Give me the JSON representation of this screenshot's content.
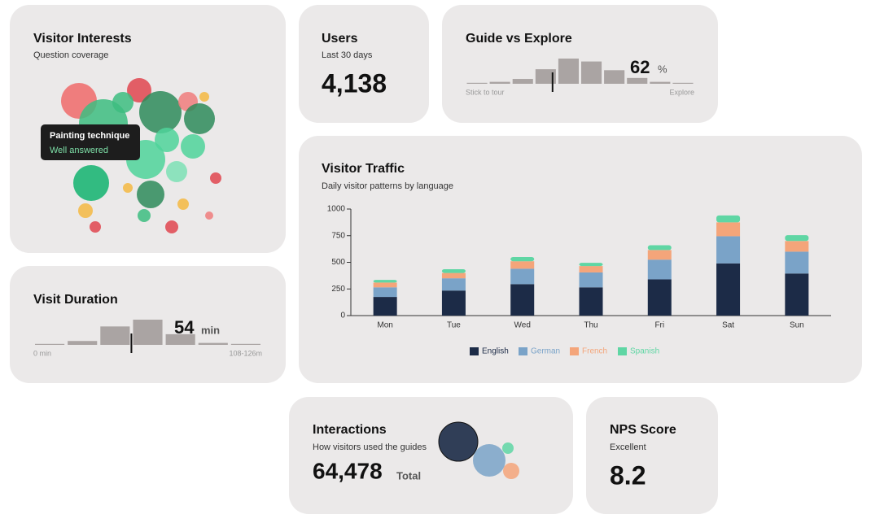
{
  "cards": {
    "interests": {
      "title": "Visitor Interests",
      "subtitle": "Question coverage",
      "bubbles": {
        "sizes": [
          22,
          30,
          15,
          13,
          26,
          12,
          6,
          19,
          15,
          15,
          24,
          22,
          13,
          6,
          17,
          7,
          9,
          7,
          8,
          7,
          8,
          5
        ],
        "colors": [
          "#f06a6a",
          "#3dbd80",
          "#e0454f",
          "#3dbd80",
          "#2e8b5a",
          "#f07c7c",
          "#f4b942",
          "#2e8b5a",
          "#4fd49a",
          "#4fd49a",
          "#4fd49a",
          "#12b36e",
          "#7de0b5",
          "#f4b942",
          "#2e8b5a",
          "#e0454f",
          "#f4b942",
          "#f4b942",
          "#3dbd80",
          "#e0454f",
          "#e0454f",
          "#f07c7c"
        ]
      },
      "tooltip": {
        "title": "Painting technique",
        "status": "Well answered"
      }
    },
    "users": {
      "title": "Users",
      "subtitle": "Last 30 days",
      "value": "4,138"
    },
    "guide": {
      "title": "Guide vs Explore",
      "histogram": [
        1,
        2,
        5,
        15,
        26,
        23,
        14,
        6,
        2,
        1
      ],
      "color": "#aaa4a3",
      "share": 62,
      "unit": "%",
      "left_label": "Stick to tour",
      "right_label": "Explore"
    },
    "duration": {
      "title": "Visit Duration",
      "histogram": [
        1,
        4,
        19,
        26,
        11,
        2,
        1
      ],
      "color": "#aaa4a3",
      "xlim": [
        0,
        126
      ],
      "median": 54,
      "unit": "min",
      "left_label": "0 min",
      "right_label": "108-126m"
    },
    "traffic": {
      "type": "bar",
      "stacked": true,
      "title": "Visitor Traffic",
      "subtitle": "Daily visitor patterns by language",
      "categories": [
        "Mon",
        "Tue",
        "Wed",
        "Thu",
        "Fri",
        "Sat",
        "Sun"
      ],
      "series": [
        {
          "name": "English",
          "color": "#1c2b47",
          "values": [
            175,
            235,
            295,
            265,
            340,
            490,
            395
          ]
        },
        {
          "name": "German",
          "color": "#7aa3c8",
          "values": [
            90,
            115,
            145,
            140,
            185,
            255,
            205
          ]
        },
        {
          "name": "French",
          "color": "#f4a57a",
          "values": [
            45,
            50,
            70,
            60,
            90,
            130,
            100
          ]
        },
        {
          "name": "Spanish",
          "color": "#5fd6a4",
          "values": [
            25,
            35,
            40,
            30,
            45,
            65,
            55
          ]
        }
      ],
      "ylim": [
        0,
        1000
      ],
      "yticks": [
        0,
        250,
        500,
        750,
        1000
      ],
      "legend": "bottom"
    },
    "interactions": {
      "title": "Interactions",
      "subtitle": "How visitors used the guides",
      "value": "64,478",
      "unit": "Total",
      "bubbles": {
        "sizes": [
          24,
          20,
          7,
          10
        ],
        "colors": [
          "#1c2b47",
          "#7aa3c8",
          "#5fd6a4",
          "#f4a57a"
        ]
      }
    },
    "nps": {
      "title": "NPS Score",
      "subtitle": "Excellent",
      "value": 8.2
    }
  }
}
